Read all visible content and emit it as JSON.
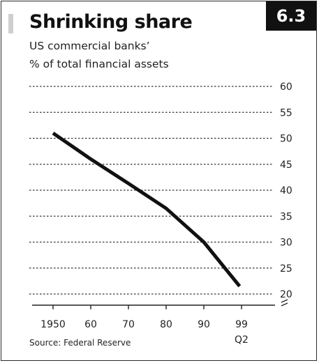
{
  "figure": {
    "badge": "6.3",
    "source": "Source: Federal Reserve"
  },
  "chart_data": {
    "type": "line",
    "title": "Shrinking share",
    "subtitle": [
      "US commercial banks’",
      "% of total financial assets"
    ],
    "xlabel": "",
    "ylabel": "",
    "x_ticks": [
      "1950",
      "60",
      "70",
      "80",
      "90",
      "99"
    ],
    "x_tick_sublabel": "Q2",
    "y_ticks": [
      "60",
      "55",
      "50",
      "45",
      "40",
      "35",
      "30",
      "25",
      "20"
    ],
    "ylim": [
      20,
      60
    ],
    "y_axis_break": true,
    "grid": "horizontal dotted",
    "series": [
      {
        "x": [
          1950,
          1960,
          1970,
          1980,
          1990,
          1999.5
        ],
        "values": [
          51,
          46,
          41.3,
          36.5,
          30,
          21.5
        ]
      }
    ],
    "line_color": "#111111"
  }
}
